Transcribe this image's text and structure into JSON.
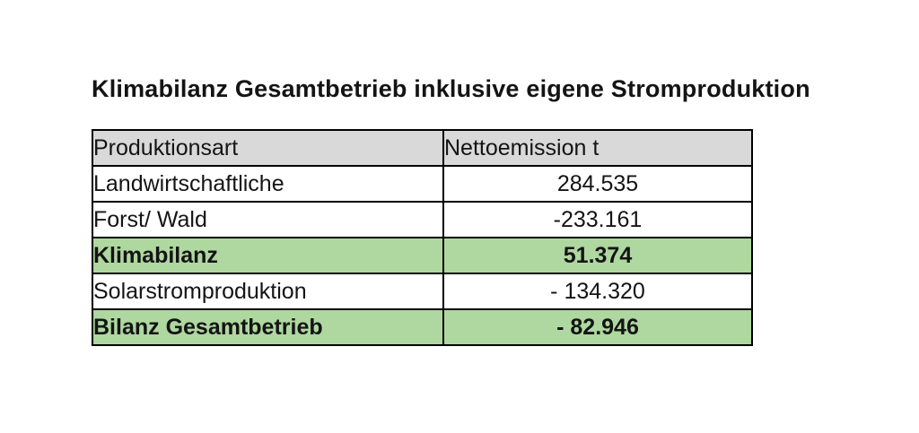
{
  "page_title": "Klimabilanz Gesamtbetrieb inklusive eigene Stromproduktion",
  "colors": {
    "background": "#ffffff",
    "header_bg": "#d9d9d9",
    "highlight_bg": "#aed89f",
    "border": "#000000",
    "text": "#141414"
  },
  "table": {
    "headers": [
      "Produktionsart",
      "Nettoemission t"
    ],
    "rows": [
      {
        "label": "Landwirtschaftliche",
        "value": "284.535",
        "highlight": false
      },
      {
        "label": "Forst/ Wald",
        "value": "-233.161",
        "highlight": false
      },
      {
        "label": "Klimabilanz",
        "value": "51.374",
        "highlight": true
      },
      {
        "label": "Solarstromproduktion",
        "value": "- 134.320",
        "highlight": false
      },
      {
        "label": "Bilanz Gesamtbetrieb",
        "value": "- 82.946",
        "highlight": true
      }
    ]
  },
  "chart_data": {
    "type": "table",
    "title": "Klimabilanz Gesamtbetrieb inklusive eigene Stromproduktion",
    "columns": [
      "Produktionsart",
      "Nettoemission t"
    ],
    "rows": [
      [
        "Landwirtschaftliche",
        284535
      ],
      [
        "Forst/ Wald",
        -233161
      ],
      [
        "Klimabilanz",
        51374
      ],
      [
        "Solarstromproduktion",
        -134320
      ],
      [
        "Bilanz Gesamtbetrieb",
        -82946
      ]
    ],
    "notes": "Numbers displayed with German thousands separator (dot). Highlighted subtotal rows: Klimabilanz and Bilanz Gesamtbetrieb (light green, bold). Header row gray, bold."
  }
}
